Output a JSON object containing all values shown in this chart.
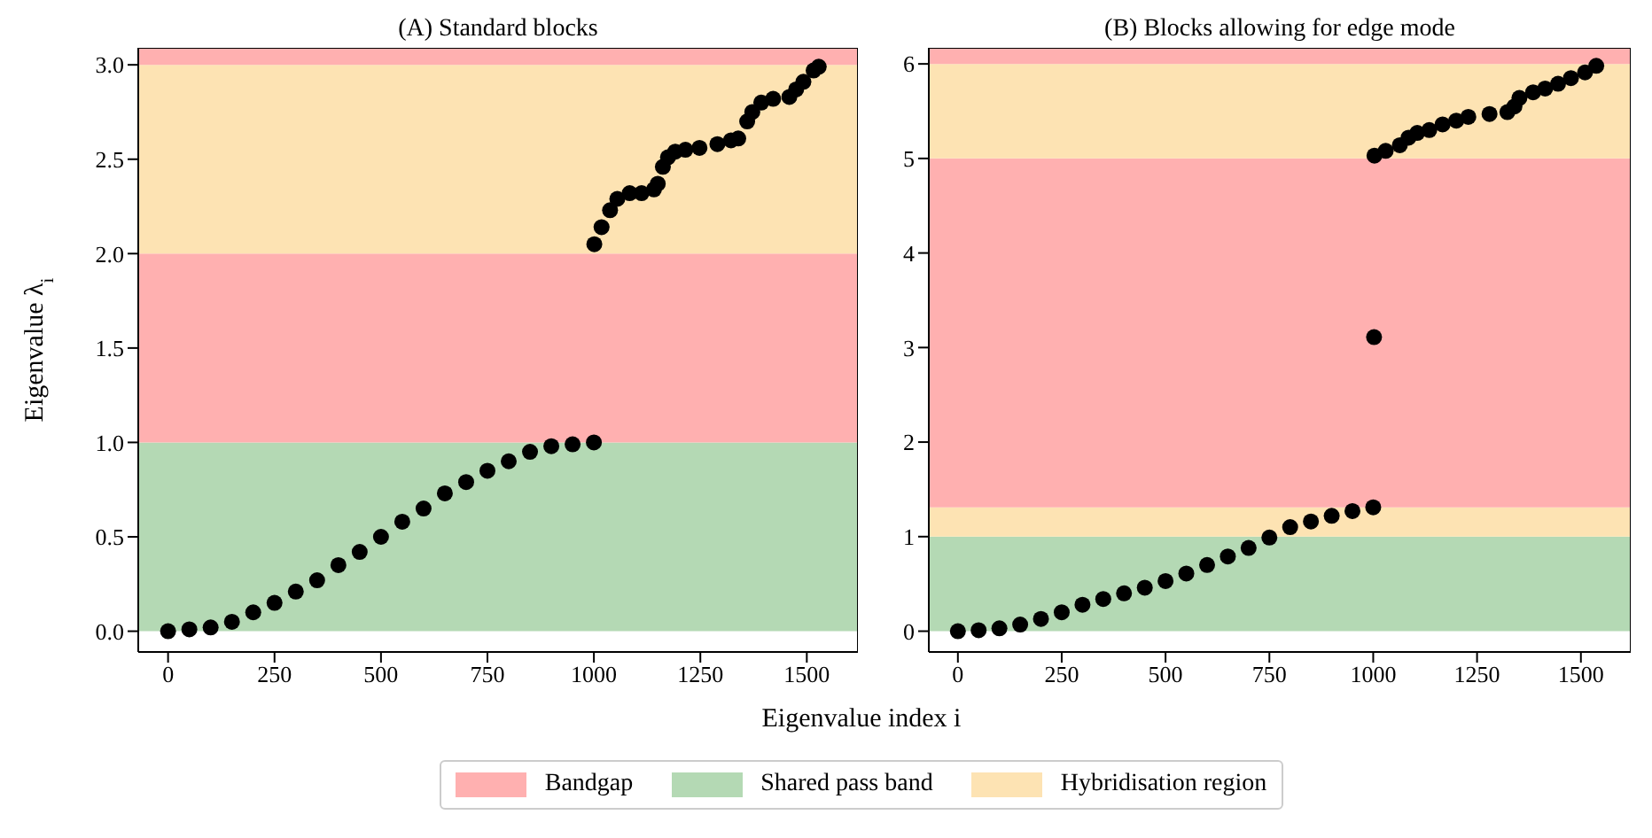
{
  "chart_data": [
    {
      "type": "scatter",
      "title": "(A) Standard blocks",
      "ylabel": "Eigenvalue λ$_{i}$",
      "xlabel": "Eigenvalue index i",
      "marker": "circle",
      "legend": "bottom",
      "grid": false,
      "xlim": [
        -70,
        1620
      ],
      "xticks": [
        0,
        250,
        500,
        750,
        1000,
        1250,
        1500
      ],
      "ylim": [
        -0.11,
        3.09
      ],
      "yticks": [
        {
          "value": 0,
          "label": "0.0"
        },
        {
          "value": 0.5,
          "label": "0.5"
        },
        {
          "value": 1,
          "label": "1.0"
        },
        {
          "value": 1.5,
          "label": "1.5"
        },
        {
          "value": 2,
          "label": "2.0"
        },
        {
          "value": 2.5,
          "label": "2.5"
        },
        {
          "value": 3,
          "label": "3.0"
        }
      ],
      "bands": [
        {
          "axis": "y",
          "from": 0,
          "to": 1,
          "label": "Shared pass band",
          "color": "#b4d9b4"
        },
        {
          "axis": "y",
          "from": 1,
          "to": 2,
          "label": "Bandgap",
          "color": "#ffb0b0"
        },
        {
          "axis": "y",
          "from": 2,
          "to": 3,
          "label": "Hybridisation region",
          "color": "#fde3b3"
        },
        {
          "axis": "y",
          "from": 3,
          "to": 3.09,
          "color": "#ffb0b0"
        }
      ],
      "series": [
        {
          "color": "#000000",
          "x": [
            0,
            50,
            100,
            150,
            200,
            250,
            300,
            350,
            400,
            450,
            500,
            550,
            600,
            650,
            700,
            750,
            800,
            850,
            900,
            950,
            1000
          ],
          "values": [
            0,
            0.01,
            0.02,
            0.05,
            0.1,
            0.15,
            0.21,
            0.27,
            0.35,
            0.42,
            0.5,
            0.58,
            0.65,
            0.73,
            0.79,
            0.85,
            0.9,
            0.95,
            0.98,
            0.99,
            1.0
          ]
        },
        {
          "color": "#000000",
          "x": [
            1001,
            1018,
            1038,
            1055,
            1084,
            1112,
            1141,
            1150,
            1162,
            1174,
            1191,
            1215,
            1248,
            1290,
            1322,
            1339,
            1360,
            1372,
            1393,
            1421,
            1459,
            1475,
            1492,
            1516,
            1528
          ],
          "values": [
            2.05,
            2.14,
            2.23,
            2.29,
            2.32,
            2.32,
            2.34,
            2.37,
            2.46,
            2.51,
            2.54,
            2.55,
            2.56,
            2.58,
            2.6,
            2.61,
            2.7,
            2.75,
            2.8,
            2.82,
            2.83,
            2.87,
            2.91,
            2.97,
            2.99
          ]
        }
      ]
    },
    {
      "type": "scatter",
      "title": "(B) Blocks allowing for edge mode",
      "marker": "circle",
      "grid": false,
      "xlim": [
        -70,
        1620
      ],
      "xticks": [
        0,
        250,
        500,
        750,
        1000,
        1250,
        1500
      ],
      "ylim": [
        -0.22,
        6.17
      ],
      "yticks": [
        0,
        1,
        2,
        3,
        4,
        5,
        6
      ],
      "bands": [
        {
          "axis": "y",
          "from": 0,
          "to": 1,
          "color": "#b4d9b4"
        },
        {
          "axis": "y",
          "from": 1,
          "to": 1.31,
          "color": "#fde3b3"
        },
        {
          "axis": "y",
          "from": 1.31,
          "to": 5,
          "color": "#ffb0b0"
        },
        {
          "axis": "y",
          "from": 5,
          "to": 6,
          "color": "#fde3b3"
        },
        {
          "axis": "y",
          "from": 6,
          "to": 6.17,
          "color": "#ffb0b0"
        }
      ],
      "series": [
        {
          "color": "#000000",
          "x": [
            0,
            50,
            100,
            150,
            200,
            250,
            300,
            350,
            400,
            450,
            500,
            550,
            600,
            650,
            700,
            750,
            800,
            850,
            900,
            950,
            1000
          ],
          "values": [
            0,
            0.01,
            0.03,
            0.07,
            0.13,
            0.2,
            0.28,
            0.34,
            0.4,
            0.46,
            0.53,
            0.61,
            0.7,
            0.79,
            0.88,
            0.99,
            1.1,
            1.16,
            1.22,
            1.27,
            1.31
          ]
        },
        {
          "color": "#000000",
          "x": [
            1002
          ],
          "values": [
            3.11
          ]
        },
        {
          "color": "#000000",
          "x": [
            1003,
            1030,
            1064,
            1085,
            1106,
            1135,
            1167,
            1200,
            1229,
            1280,
            1323,
            1340,
            1352,
            1385,
            1414,
            1445,
            1476,
            1510,
            1537
          ],
          "values": [
            5.03,
            5.08,
            5.14,
            5.22,
            5.27,
            5.3,
            5.36,
            5.4,
            5.44,
            5.47,
            5.49,
            5.55,
            5.64,
            5.7,
            5.74,
            5.79,
            5.85,
            5.91,
            5.98
          ]
        }
      ]
    }
  ]
}
